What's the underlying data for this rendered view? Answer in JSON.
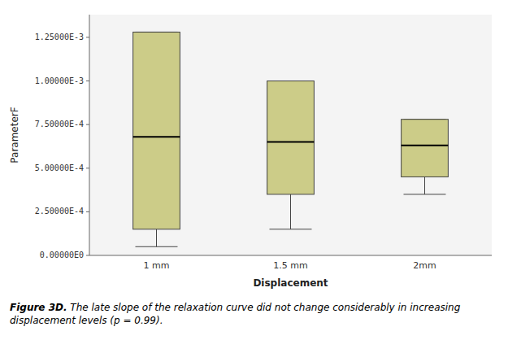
{
  "chart_data": {
    "type": "box",
    "categories": [
      "1 mm",
      "1.5 mm",
      "2mm"
    ],
    "boxes": [
      {
        "whisker_low": 5e-05,
        "q1": 0.00015,
        "median": 0.00068,
        "q3": 0.00128,
        "whisker_high": 0.00128
      },
      {
        "whisker_low": 0.00015,
        "q1": 0.00035,
        "median": 0.00065,
        "q3": 0.001,
        "whisker_high": 0.001
      },
      {
        "whisker_low": 0.00035,
        "q1": 0.00045,
        "median": 0.00063,
        "q3": 0.00078,
        "whisker_high": 0.00078
      }
    ],
    "color": "#cccc88",
    "ylabel": "ParameterF",
    "xlabel": "Displacement",
    "ylim": [
      0.0,
      0.00138
    ],
    "yticks": [
      {
        "value": 0.0,
        "label": "0.00000E0"
      },
      {
        "value": 0.00025,
        "label": "2.50000E-4"
      },
      {
        "value": 0.0005,
        "label": "5.00000E-4"
      },
      {
        "value": 0.00075,
        "label": "7.50000E-4"
      },
      {
        "value": 0.001,
        "label": "1.00000E-3"
      },
      {
        "value": 0.00125,
        "label": "1.25000E-3"
      }
    ],
    "grid": false,
    "caption_title": "Figure 3D.",
    "caption": "  The late slope of the relaxation curve did not change considerably in increasing displacement levels (p = 0.99)."
  }
}
